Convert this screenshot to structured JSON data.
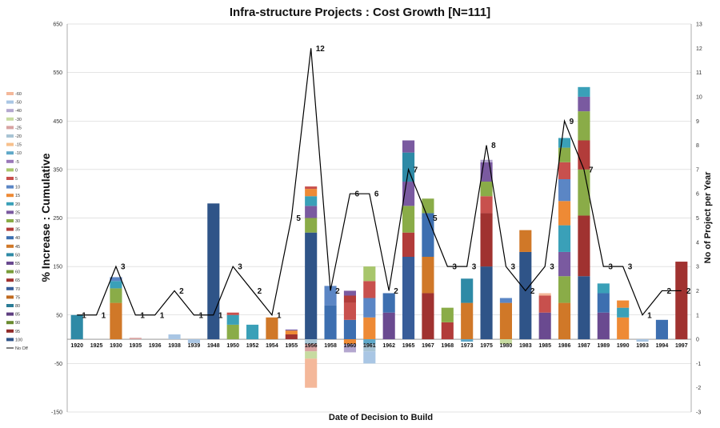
{
  "chart_data": {
    "type": "bar",
    "title": "Infra-structure Projects : Cost Growth [N=111]",
    "xlabel": "Date of Decision to Build",
    "ylabel": "% Increase : Cumulative",
    "y2label": "No of Project per Year",
    "ylim": [
      -150,
      650
    ],
    "yticks": [
      -150,
      -50,
      50,
      150,
      250,
      350,
      450,
      550,
      650
    ],
    "y2lim": [
      -3,
      13
    ],
    "y2ticks": [
      -3,
      -2,
      -1,
      0,
      1,
      2,
      3,
      4,
      5,
      6,
      7,
      8,
      9,
      10,
      11,
      12,
      13
    ],
    "legend_position": "left",
    "legend": [
      {
        "label": "-60",
        "color": "#f4b89a"
      },
      {
        "label": "-50",
        "color": "#a9c6e4"
      },
      {
        "label": "-40",
        "color": "#b4a7cf"
      },
      {
        "label": "-30",
        "color": "#c7dba0"
      },
      {
        "label": "-25",
        "color": "#d8a3a2"
      },
      {
        "label": "-20",
        "color": "#a8c4d4"
      },
      {
        "label": "-15",
        "color": "#f7c08c"
      },
      {
        "label": "-10",
        "color": "#5fa8c8"
      },
      {
        "label": "-5",
        "color": "#9a78b8"
      },
      {
        "label": "0",
        "color": "#a8c66c"
      },
      {
        "label": "5",
        "color": "#c8504d"
      },
      {
        "label": "10",
        "color": "#5b86c5"
      },
      {
        "label": "15",
        "color": "#ee8a35"
      },
      {
        "label": "20",
        "color": "#3aa0b8"
      },
      {
        "label": "25",
        "color": "#7a5aa0"
      },
      {
        "label": "30",
        "color": "#8aac48"
      },
      {
        "label": "35",
        "color": "#b23c3a"
      },
      {
        "label": "40",
        "color": "#3d6fb0"
      },
      {
        "label": "45",
        "color": "#d07828"
      },
      {
        "label": "50",
        "color": "#2e8aa6"
      },
      {
        "label": "55",
        "color": "#6a4a90"
      },
      {
        "label": "60",
        "color": "#789c38"
      },
      {
        "label": "65",
        "color": "#a03230"
      },
      {
        "label": "70",
        "color": "#385d99"
      },
      {
        "label": "75",
        "color": "#c06a20"
      },
      {
        "label": "80",
        "color": "#2a7c96"
      },
      {
        "label": "85",
        "color": "#5e3e80"
      },
      {
        "label": "90",
        "color": "#6a8c30"
      },
      {
        "label": "95",
        "color": "#902a28"
      },
      {
        "label": "100",
        "color": "#2f5488"
      },
      {
        "label": "No Off",
        "color": "#000000"
      }
    ],
    "categories": [
      "1920",
      "1925",
      "1930",
      "1935",
      "1936",
      "1938",
      "1939",
      "1948",
      "1950",
      "1952",
      "1954",
      "1955",
      "1956",
      "1958",
      "1960",
      "1961",
      "1962",
      "1965",
      "1967",
      "1968",
      "1973",
      "1975",
      "1980",
      "1983",
      "1985",
      "1986",
      "1987",
      "1989",
      "1990",
      "1993",
      "1994",
      "1997"
    ],
    "project_counts": [
      1,
      1,
      3,
      1,
      1,
      2,
      1,
      1,
      3,
      2,
      1,
      5,
      12,
      2,
      6,
      6,
      2,
      7,
      5,
      3,
      3,
      8,
      3,
      2,
      3,
      9,
      7,
      3,
      3,
      1,
      2,
      2
    ],
    "series_stacks": [
      {
        "pos": [
          {
            "v": 50,
            "c": "#2e8aa6"
          }
        ],
        "neg": []
      },
      {
        "pos": [],
        "neg": []
      },
      {
        "pos": [
          {
            "v": 75,
            "c": "#d07828"
          },
          {
            "v": 30,
            "c": "#8aac48"
          },
          {
            "v": 15,
            "c": "#3aa0b8"
          },
          {
            "v": 8,
            "c": "#5b86c5"
          }
        ],
        "neg": []
      },
      {
        "pos": [
          {
            "v": 3,
            "c": "#d8a3a2"
          }
        ],
        "neg": []
      },
      {
        "pos": [],
        "neg": []
      },
      {
        "pos": [
          {
            "v": 10,
            "c": "#a9c6e4"
          }
        ],
        "neg": []
      },
      {
        "pos": [],
        "neg": [
          {
            "v": 8,
            "c": "#a9c6e4"
          }
        ]
      },
      {
        "pos": [
          {
            "v": 280,
            "c": "#2f5488"
          }
        ],
        "neg": []
      },
      {
        "pos": [
          {
            "v": 30,
            "c": "#8aac48"
          },
          {
            "v": 20,
            "c": "#3aa0b8"
          },
          {
            "v": 5,
            "c": "#c8504d"
          }
        ],
        "neg": []
      },
      {
        "pos": [
          {
            "v": 30,
            "c": "#3aa0b8"
          }
        ],
        "neg": []
      },
      {
        "pos": [
          {
            "v": 45,
            "c": "#d07828"
          }
        ],
        "neg": []
      },
      {
        "pos": [
          {
            "v": 10,
            "c": "#a03230"
          },
          {
            "v": 8,
            "c": "#ee8a35"
          },
          {
            "v": 2,
            "c": "#7a5aa0"
          }
        ],
        "neg": []
      },
      {
        "pos": [
          {
            "v": 220,
            "c": "#2f5488"
          },
          {
            "v": 30,
            "c": "#8aac48"
          },
          {
            "v": 25,
            "c": "#7a5aa0"
          },
          {
            "v": 20,
            "c": "#3aa0b8"
          },
          {
            "v": 15,
            "c": "#ee8a35"
          },
          {
            "v": 5,
            "c": "#c8504d"
          }
        ],
        "neg": [
          {
            "v": 10,
            "c": "#a8c4d4"
          },
          {
            "v": 15,
            "c": "#d8a3a2"
          },
          {
            "v": 15,
            "c": "#c7dba0"
          },
          {
            "v": 60,
            "c": "#f4b89a"
          }
        ]
      },
      {
        "pos": [
          {
            "v": 70,
            "c": "#3d6fb0"
          },
          {
            "v": 40,
            "c": "#5b86c5"
          }
        ],
        "neg": []
      },
      {
        "pos": [
          {
            "v": 40,
            "c": "#3d6fb0"
          },
          {
            "v": 35,
            "c": "#c8504d"
          },
          {
            "v": 15,
            "c": "#b23c3a"
          },
          {
            "v": 10,
            "c": "#7a5aa0"
          }
        ],
        "neg": [
          {
            "v": 10,
            "c": "#ee8a35"
          },
          {
            "v": 17,
            "c": "#b4a7cf"
          }
        ]
      },
      {
        "pos": [
          {
            "v": 45,
            "c": "#ee8a35"
          },
          {
            "v": 40,
            "c": "#5b86c5"
          },
          {
            "v": 35,
            "c": "#c8504d"
          },
          {
            "v": 30,
            "c": "#a8c66c"
          }
        ],
        "neg": [
          {
            "v": 10,
            "c": "#5fa8c8"
          },
          {
            "v": 15,
            "c": "#a8c4d4"
          },
          {
            "v": 25,
            "c": "#a9c6e4"
          }
        ]
      },
      {
        "pos": [
          {
            "v": 55,
            "c": "#6a4a90"
          },
          {
            "v": 40,
            "c": "#3d6fb0"
          }
        ],
        "neg": []
      },
      {
        "pos": [
          {
            "v": 170,
            "c": "#385d99"
          },
          {
            "v": 50,
            "c": "#b23c3a"
          },
          {
            "v": 55,
            "c": "#8aac48"
          },
          {
            "v": 50,
            "c": "#7a5aa0"
          },
          {
            "v": 60,
            "c": "#2e8aa6"
          },
          {
            "v": 25,
            "c": "#7a5aa0"
          }
        ],
        "neg": []
      },
      {
        "pos": [
          {
            "v": 95,
            "c": "#a03230"
          },
          {
            "v": 75,
            "c": "#d07828"
          },
          {
            "v": 90,
            "c": "#3d6fb0"
          },
          {
            "v": 30,
            "c": "#8aac48"
          }
        ],
        "neg": []
      },
      {
        "pos": [
          {
            "v": 35,
            "c": "#b23c3a"
          },
          {
            "v": 30,
            "c": "#8aac48"
          }
        ],
        "neg": []
      },
      {
        "pos": [
          {
            "v": 75,
            "c": "#d07828"
          },
          {
            "v": 50,
            "c": "#2e8aa6"
          }
        ],
        "neg": [
          {
            "v": 5,
            "c": "#5fa8c8"
          }
        ]
      },
      {
        "pos": [
          {
            "v": 150,
            "c": "#2f5488"
          },
          {
            "v": 110,
            "c": "#a03230"
          },
          {
            "v": 35,
            "c": "#c8504d"
          },
          {
            "v": 30,
            "c": "#8aac48"
          },
          {
            "v": 40,
            "c": "#7a5aa0"
          },
          {
            "v": 5,
            "c": "#b4a7cf"
          }
        ],
        "neg": []
      },
      {
        "pos": [
          {
            "v": 75,
            "c": "#d07828"
          },
          {
            "v": 10,
            "c": "#5b86c5"
          }
        ],
        "neg": [
          {
            "v": 10,
            "c": "#c7dba0"
          }
        ]
      },
      {
        "pos": [
          {
            "v": 180,
            "c": "#2f5488"
          },
          {
            "v": 45,
            "c": "#d07828"
          }
        ],
        "neg": []
      },
      {
        "pos": [
          {
            "v": 55,
            "c": "#6a4a90"
          },
          {
            "v": 35,
            "c": "#c8504d"
          },
          {
            "v": 5,
            "c": "#f4b89a"
          }
        ],
        "neg": []
      },
      {
        "pos": [
          {
            "v": 75,
            "c": "#d07828"
          },
          {
            "v": 55,
            "c": "#8aac48"
          },
          {
            "v": 50,
            "c": "#7a5aa0"
          },
          {
            "v": 55,
            "c": "#3aa0b8"
          },
          {
            "v": 50,
            "c": "#ee8a35"
          },
          {
            "v": 45,
            "c": "#5b86c5"
          },
          {
            "v": 35,
            "c": "#c8504d"
          },
          {
            "v": 30,
            "c": "#8aac48"
          },
          {
            "v": 20,
            "c": "#3aa0b8"
          }
        ],
        "neg": []
      },
      {
        "pos": [
          {
            "v": 130,
            "c": "#2f5488"
          },
          {
            "v": 125,
            "c": "#a03230"
          },
          {
            "v": 95,
            "c": "#8aac48"
          },
          {
            "v": 60,
            "c": "#b23c3a"
          },
          {
            "v": 60,
            "c": "#8aac48"
          },
          {
            "v": 30,
            "c": "#7a5aa0"
          },
          {
            "v": 20,
            "c": "#3aa0b8"
          }
        ],
        "neg": []
      },
      {
        "pos": [
          {
            "v": 55,
            "c": "#6a4a90"
          },
          {
            "v": 40,
            "c": "#3d6fb0"
          },
          {
            "v": 20,
            "c": "#3aa0b8"
          }
        ],
        "neg": []
      },
      {
        "pos": [
          {
            "v": 45,
            "c": "#ee8a35"
          },
          {
            "v": 20,
            "c": "#3aa0b8"
          },
          {
            "v": 15,
            "c": "#ee8a35"
          }
        ],
        "neg": []
      },
      {
        "pos": [],
        "neg": [
          {
            "v": 5,
            "c": "#a9c6e4"
          }
        ]
      },
      {
        "pos": [
          {
            "v": 40,
            "c": "#3d6fb0"
          }
        ],
        "neg": []
      },
      {
        "pos": [
          {
            "v": 160,
            "c": "#a03230"
          }
        ],
        "neg": []
      }
    ]
  }
}
